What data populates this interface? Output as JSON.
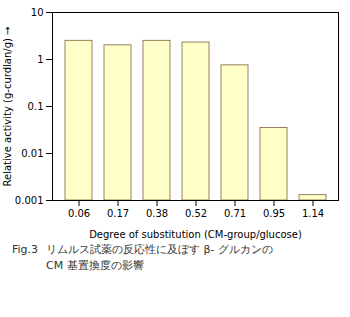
{
  "chart_data": {
    "type": "bar",
    "categories": [
      "0.06",
      "0.17",
      "0.38",
      "0.52",
      "0.71",
      "0.95",
      "1.14"
    ],
    "values": [
      2.5,
      2.0,
      2.5,
      2.3,
      0.75,
      0.035,
      0.0013
    ],
    "color": "#FFFFC8",
    "xlabel": "Degree of substitution (CM-group/glucose)",
    "ylabel": "Relative activity (g-curdlan/g)",
    "log": "y",
    "ylim": [
      0.001,
      10
    ],
    "yticks": [
      0.001,
      0.01,
      0.1,
      1,
      10
    ],
    "grid": false,
    "annotations": [
      "Fig.3",
      "リムルス試薬の反応性に及ぼす β- グルカンの",
      "CM 基置換度の影響"
    ]
  }
}
